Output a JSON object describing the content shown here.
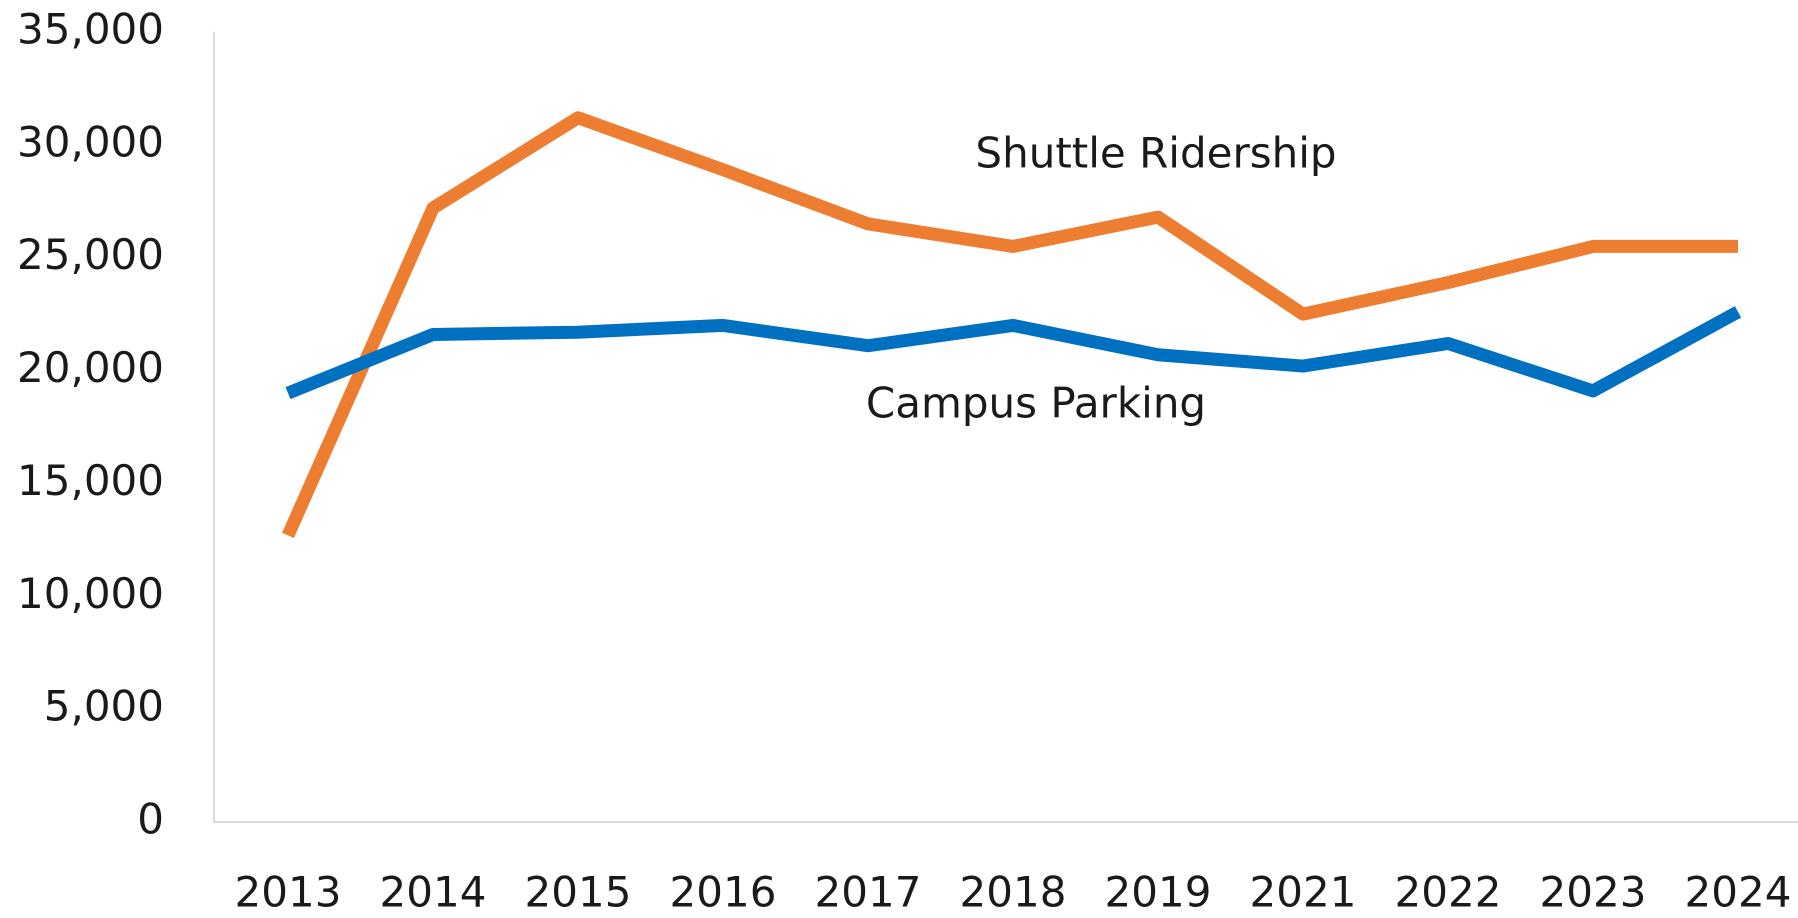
{
  "chart_data": {
    "type": "line",
    "categories": [
      "2013",
      "2014",
      "2015",
      "2016",
      "2017",
      "2018",
      "2019",
      "2021",
      "2022",
      "2023",
      "2024"
    ],
    "series": [
      {
        "name": "Shuttle Ridership",
        "color": "#ed7d31",
        "values": [
          12700,
          27200,
          31200,
          28900,
          26500,
          25500,
          26800,
          22500,
          23900,
          25500,
          25500
        ]
      },
      {
        "name": "Campus Parking",
        "color": "#0070c0",
        "values": [
          19000,
          21600,
          21700,
          22000,
          21100,
          22000,
          20700,
          20200,
          21200,
          19100,
          22600
        ]
      }
    ],
    "ylim": [
      0,
      35000
    ],
    "yticks": [
      0,
      {
        "value": 5000,
        "label": "5,000"
      },
      {
        "value": 10000,
        "label": "10,000"
      },
      {
        "value": 15000,
        "label": "15,000"
      },
      {
        "value": 20000,
        "label": "20,000"
      },
      {
        "value": 25000,
        "label": "25,000"
      },
      {
        "value": 30000,
        "label": "30,000"
      },
      {
        "value": 35000,
        "label": "35,000"
      }
    ],
    "grid": false
  }
}
